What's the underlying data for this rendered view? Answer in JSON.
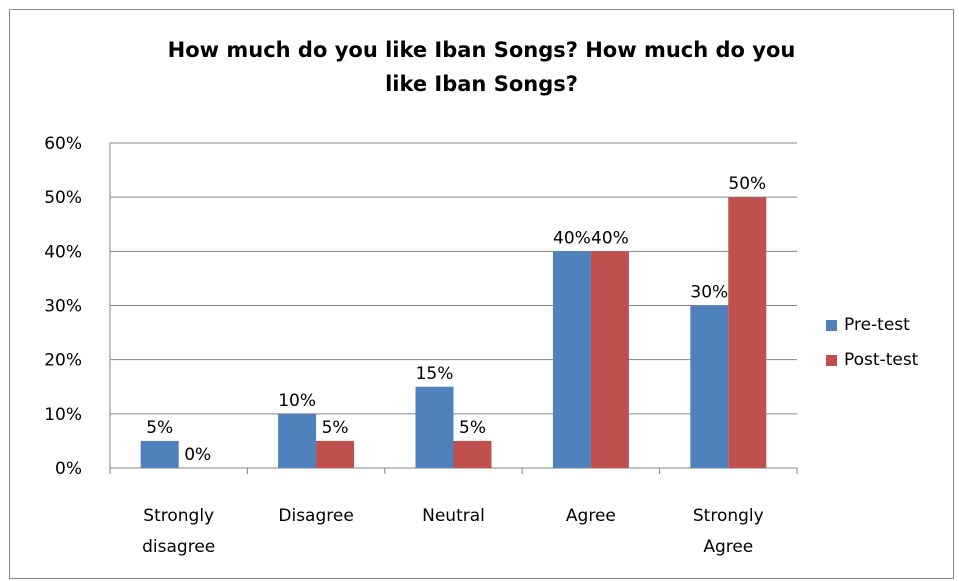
{
  "chart_data": {
    "type": "bar",
    "title": [
      "How much do you like Iban Songs? How much do you",
      "like Iban Songs?"
    ],
    "categories": [
      [
        "Strongly",
        "disagree"
      ],
      [
        "Disagree"
      ],
      [
        "Neutral"
      ],
      [
        "Agree"
      ],
      [
        "Strongly",
        "Agree"
      ]
    ],
    "series": [
      {
        "name": "Pre-test",
        "color": "#4f81bd",
        "values": [
          5,
          10,
          15,
          40,
          30
        ],
        "labels": [
          "5%",
          "10%",
          "15%",
          "40%",
          "30%"
        ]
      },
      {
        "name": "Post-test",
        "color": "#c0504d",
        "values": [
          0,
          5,
          5,
          40,
          50
        ],
        "labels": [
          "0%",
          "5%",
          "5%",
          "40%",
          "50%"
        ]
      }
    ],
    "yticks": [
      "0%",
      "10%",
      "20%",
      "30%",
      "40%",
      "50%",
      "60%"
    ],
    "ylim": [
      0,
      60
    ],
    "grid": true,
    "legend_position": "right"
  }
}
